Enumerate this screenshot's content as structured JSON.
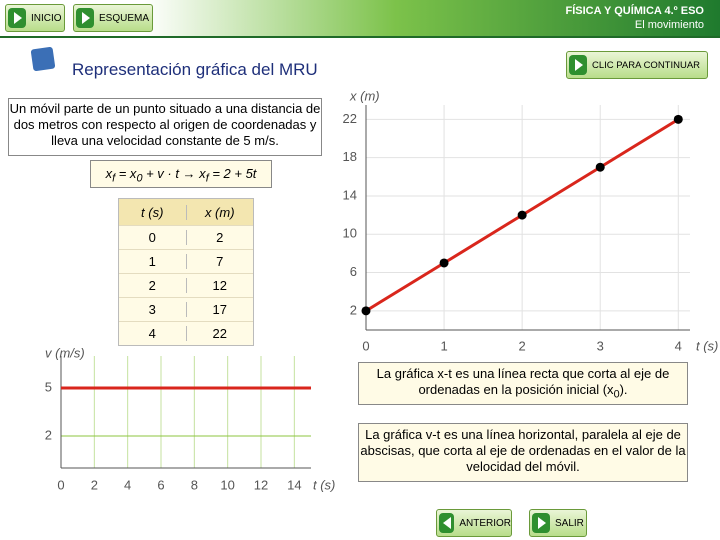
{
  "header": {
    "subject": "FÍSICA Y QUÍMICA 4.º ESO",
    "unit": "El movimiento"
  },
  "nav": {
    "home": "INICIO",
    "outline": "ESQUEMA",
    "continue": "CLIC PARA CONTINUAR",
    "previous": "ANTERIOR",
    "exit": "SALIR"
  },
  "title": "Representación gráfica del MRU",
  "intro": "Un móvil parte de un punto situado a una distancia de dos metros con respecto al origen de coordenadas y lleva una velocidad constante de 5 m/s.",
  "formula": [
    "x",
    "f",
    " = x",
    "0",
    " + v · t → x",
    "f",
    " = 2 + 5t"
  ],
  "table": {
    "header": [
      "t (s)",
      "x (m)"
    ],
    "rows": [
      [
        0,
        2
      ],
      [
        1,
        7
      ],
      [
        2,
        12
      ],
      [
        3,
        17
      ],
      [
        4,
        22
      ]
    ]
  },
  "xt_chart": {
    "x_label": "t (s)",
    "y_label": "x (m)",
    "xlim": [
      0,
      4.15
    ],
    "ylim": [
      0,
      23.5
    ],
    "xticks": [
      0,
      1,
      2,
      3,
      4
    ],
    "yticks": [
      2,
      6,
      10,
      14,
      18,
      22
    ],
    "grid": true,
    "line_color": "#d9261c",
    "point_color": "#000000"
  },
  "vt_chart": {
    "x_label": "t (s)",
    "y_label": "v (m/s)",
    "xlim": [
      0,
      15
    ],
    "ylim": [
      0,
      7
    ],
    "xticks": [
      0,
      2,
      4,
      6,
      8,
      10,
      12,
      14
    ],
    "yticks": [
      2,
      5
    ],
    "grid": true,
    "velocity": 5,
    "line_color": "#d9261c",
    "grid_color": "#8cc63f"
  },
  "notes": [
    [
      "La gráfica x-t es una línea recta que corta al eje de ordenadas en la posición inicial (x",
      "0",
      ")."
    ],
    [
      "La gráfica v-t es una línea horizontal, paralela al eje de abscisas, que corta al eje de ordenadas en el valor de la velocidad del móvil."
    ]
  ]
}
